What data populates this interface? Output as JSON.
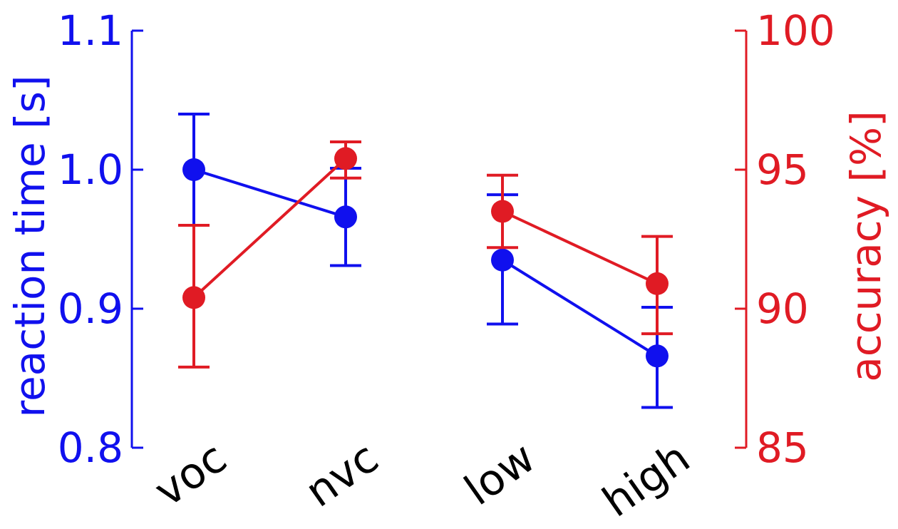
{
  "chart_data": {
    "type": "line",
    "categories": [
      "voc",
      "nvc",
      "low",
      "high"
    ],
    "groups": [
      [
        "voc",
        "nvc"
      ],
      [
        "low",
        "high"
      ]
    ],
    "left_axis": {
      "label": "reaction time [s]",
      "range": [
        0.8,
        1.1
      ],
      "ticks": [
        0.8,
        0.9,
        1.0,
        1.1
      ],
      "tick_labels": [
        "0.8",
        "0.9",
        "1.0",
        "1.1"
      ],
      "color": "#1010ee"
    },
    "right_axis": {
      "label": "accuracy [%]",
      "range": [
        85,
        100
      ],
      "ticks": [
        85,
        90,
        95,
        100
      ],
      "tick_labels": [
        "85",
        "90",
        "95",
        "100"
      ],
      "color": "#e01b24"
    },
    "series": [
      {
        "axis": "left",
        "color": "#1010ee",
        "values": [
          1.0,
          0.966,
          0.935,
          0.866
        ],
        "err_low": [
          0.96,
          0.931,
          0.889,
          0.829
        ],
        "err_high": [
          1.04,
          1.001,
          0.982,
          0.901
        ]
      },
      {
        "axis": "right",
        "color": "#e01b24",
        "values": [
          90.4,
          95.4,
          93.5,
          90.9
        ],
        "err_low": [
          87.9,
          94.7,
          92.2,
          89.1
        ],
        "err_high": [
          93.0,
          96.0,
          94.8,
          92.6
        ]
      }
    ],
    "grid": false,
    "legend": "none"
  }
}
